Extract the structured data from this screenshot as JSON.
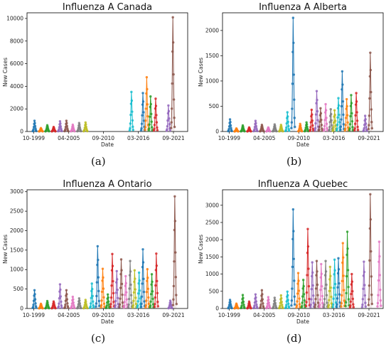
{
  "captions": [
    "(a)",
    "(b)",
    "(c)",
    "(d)"
  ],
  "season_colors": [
    "#1f77b4",
    "#ff7f0e",
    "#2ca02c",
    "#d62728",
    "#9467bd",
    "#8c564b",
    "#e377c2",
    "#7f7f7f",
    "#bcbd22",
    "#17becf"
  ],
  "chart_data": [
    {
      "type": "line",
      "title": "Influenza A Canada",
      "xlabel": "Date",
      "ylabel": "New Cases",
      "x_ticks": [
        "10-1999",
        "04-2005",
        "09-2010",
        "03-2016",
        "09-2021"
      ],
      "x_tick_years": [
        1999.75,
        2005.25,
        2010.67,
        2016.17,
        2021.67
      ],
      "xlim": [
        1998.7,
        2023.9
      ],
      "ylim": [
        0,
        10500
      ],
      "y_ticks": [
        "0",
        "2000",
        "4000",
        "6000",
        "8000",
        "10000"
      ],
      "y_tick_values": [
        0,
        2000,
        4000,
        6000,
        8000,
        10000
      ],
      "series": [
        {
          "start": 1999.6,
          "peak": 950
        },
        {
          "start": 2000.6,
          "peak": 300
        },
        {
          "start": 2001.6,
          "peak": 550
        },
        {
          "start": 2002.6,
          "peak": 400
        },
        {
          "start": 2003.6,
          "peak": 900
        },
        {
          "start": 2004.6,
          "peak": 950
        },
        {
          "start": 2005.6,
          "peak": 600
        },
        {
          "start": 2006.6,
          "peak": 750
        },
        {
          "start": 2007.6,
          "peak": 800
        },
        {
          "start": 2014.8,
          "peak": 3500
        },
        {
          "start": 2016.6,
          "peak": 3400
        },
        {
          "start": 2017.2,
          "peak": 4800
        },
        {
          "start": 2017.8,
          "peak": 3100
        },
        {
          "start": 2018.6,
          "peak": 2900
        },
        {
          "start": 2020.6,
          "peak": 2300
        },
        {
          "start": 2021.3,
          "peak": 10100
        }
      ]
    },
    {
      "type": "line",
      "title": "Influenza A Alberta",
      "xlabel": "Date",
      "ylabel": "New Cases",
      "x_ticks": [
        "10-1999",
        "04-2005",
        "09-2010",
        "03-2016",
        "09-2021"
      ],
      "x_tick_years": [
        1999.75,
        2005.25,
        2010.67,
        2016.17,
        2021.67
      ],
      "xlim": [
        1998.7,
        2023.9
      ],
      "ylim": [
        0,
        2350
      ],
      "y_ticks": [
        "0",
        "500",
        "1000",
        "1500",
        "2000"
      ],
      "y_tick_values": [
        0,
        500,
        1000,
        1500,
        2000
      ],
      "series": [
        {
          "start": 1999.6,
          "peak": 240
        },
        {
          "start": 2000.6,
          "peak": 60
        },
        {
          "start": 2001.6,
          "peak": 120
        },
        {
          "start": 2002.6,
          "peak": 80
        },
        {
          "start": 2003.6,
          "peak": 210
        },
        {
          "start": 2004.6,
          "peak": 130
        },
        {
          "start": 2005.6,
          "peak": 80
        },
        {
          "start": 2006.6,
          "peak": 140
        },
        {
          "start": 2007.6,
          "peak": 130
        },
        {
          "start": 2008.6,
          "peak": 380
        },
        {
          "start": 2009.5,
          "peak": 2250
        },
        {
          "start": 2010.6,
          "peak": 150
        },
        {
          "start": 2011.6,
          "peak": 180
        },
        {
          "start": 2012.4,
          "peak": 430
        },
        {
          "start": 2013.2,
          "peak": 800
        },
        {
          "start": 2013.8,
          "peak": 460
        },
        {
          "start": 2014.6,
          "peak": 540
        },
        {
          "start": 2015.4,
          "peak": 440
        },
        {
          "start": 2016.0,
          "peak": 420
        },
        {
          "start": 2016.6,
          "peak": 660
        },
        {
          "start": 2017.2,
          "peak": 1190
        },
        {
          "start": 2017.9,
          "peak": 640
        },
        {
          "start": 2018.6,
          "peak": 720
        },
        {
          "start": 2019.4,
          "peak": 760
        },
        {
          "start": 2020.8,
          "peak": 310
        },
        {
          "start": 2021.6,
          "peak": 1560
        }
      ]
    },
    {
      "type": "line",
      "title": "Influenza A Ontario",
      "xlabel": "Date",
      "ylabel": "New Cases",
      "x_ticks": [
        "10-1999",
        "04-2005",
        "09-2010",
        "03-2016",
        "09-2021"
      ],
      "x_tick_years": [
        1999.75,
        2005.25,
        2010.67,
        2016.17,
        2021.67
      ],
      "xlim": [
        1998.7,
        2023.9
      ],
      "ylim": [
        0,
        3050
      ],
      "y_ticks": [
        "0",
        "500",
        "1000",
        "1500",
        "2000",
        "2500",
        "3000"
      ],
      "y_tick_values": [
        0,
        500,
        1000,
        1500,
        2000,
        2500,
        3000
      ],
      "series": [
        {
          "start": 1999.6,
          "peak": 470
        },
        {
          "start": 2000.6,
          "peak": 120
        },
        {
          "start": 2001.6,
          "peak": 190
        },
        {
          "start": 2002.6,
          "peak": 180
        },
        {
          "start": 2003.6,
          "peak": 620
        },
        {
          "start": 2004.6,
          "peak": 470
        },
        {
          "start": 2005.6,
          "peak": 300
        },
        {
          "start": 2006.6,
          "peak": 260
        },
        {
          "start": 2007.6,
          "peak": 220
        },
        {
          "start": 2008.6,
          "peak": 640
        },
        {
          "start": 2009.5,
          "peak": 1600
        },
        {
          "start": 2010.3,
          "peak": 1020
        },
        {
          "start": 2011.1,
          "peak": 360
        },
        {
          "start": 2011.8,
          "peak": 1400
        },
        {
          "start": 2012.5,
          "peak": 960
        },
        {
          "start": 2013.2,
          "peak": 1260
        },
        {
          "start": 2013.9,
          "peak": 830
        },
        {
          "start": 2014.6,
          "peak": 1220
        },
        {
          "start": 2015.3,
          "peak": 980
        },
        {
          "start": 2016.0,
          "peak": 920
        },
        {
          "start": 2016.6,
          "peak": 1520
        },
        {
          "start": 2017.3,
          "peak": 1010
        },
        {
          "start": 2018.0,
          "peak": 880
        },
        {
          "start": 2018.7,
          "peak": 1410
        },
        {
          "start": 2020.9,
          "peak": 200
        },
        {
          "start": 2021.6,
          "peak": 2880
        }
      ]
    },
    {
      "type": "line",
      "title": "Influenza A Quebec",
      "xlabel": "Date",
      "ylabel": "New Cases",
      "x_ticks": [
        "10-1999",
        "04-2005",
        "09-2010",
        "03-2016",
        "09-2021"
      ],
      "x_tick_years": [
        1999.75,
        2005.25,
        2010.67,
        2016.17,
        2021.67
      ],
      "xlim": [
        1998.7,
        2023.9
      ],
      "ylim": [
        0,
        3450
      ],
      "y_ticks": [
        "0",
        "500",
        "1000",
        "1500",
        "2000",
        "2500",
        "3000"
      ],
      "y_tick_values": [
        0,
        500,
        1000,
        1500,
        2000,
        2500,
        3000
      ],
      "series": [
        {
          "start": 1999.6,
          "peak": 250
        },
        {
          "start": 2000.6,
          "peak": 140
        },
        {
          "start": 2001.6,
          "peak": 390
        },
        {
          "start": 2002.6,
          "peak": 200
        },
        {
          "start": 2003.6,
          "peak": 410
        },
        {
          "start": 2004.6,
          "peak": 530
        },
        {
          "start": 2005.6,
          "peak": 330
        },
        {
          "start": 2006.6,
          "peak": 310
        },
        {
          "start": 2007.6,
          "peak": 380
        },
        {
          "start": 2008.6,
          "peak": 490
        },
        {
          "start": 2009.5,
          "peak": 2880
        },
        {
          "start": 2010.3,
          "peak": 1030
        },
        {
          "start": 2011.1,
          "peak": 830
        },
        {
          "start": 2011.8,
          "peak": 2310
        },
        {
          "start": 2012.5,
          "peak": 1340
        },
        {
          "start": 2013.2,
          "peak": 1380
        },
        {
          "start": 2013.9,
          "peak": 1290
        },
        {
          "start": 2014.6,
          "peak": 1380
        },
        {
          "start": 2015.3,
          "peak": 1210
        },
        {
          "start": 2016.0,
          "peak": 1420
        },
        {
          "start": 2016.6,
          "peak": 1460
        },
        {
          "start": 2017.3,
          "peak": 1900
        },
        {
          "start": 2018.0,
          "peak": 2230
        },
        {
          "start": 2018.7,
          "peak": 1000
        },
        {
          "start": 2020.6,
          "peak": 1360
        },
        {
          "start": 2021.6,
          "peak": 3320
        },
        {
          "start": 2023.0,
          "peak": 1940
        }
      ]
    }
  ]
}
